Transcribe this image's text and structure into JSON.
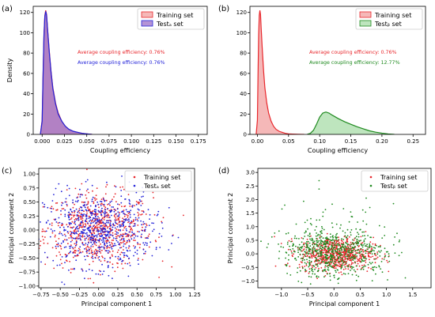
{
  "chart_data": [
    {
      "panel": "(a)",
      "type": "area",
      "xlabel": "Coupling efficiency",
      "ylabel": "Density",
      "xlim": [
        -0.01,
        0.185
      ],
      "ylim": [
        0,
        126
      ],
      "xticks": [
        "0.000",
        "0.025",
        "0.050",
        "0.075",
        "0.100",
        "0.125",
        "0.150",
        "0.175"
      ],
      "yticks": [
        "0",
        "20",
        "40",
        "60",
        "80",
        "100",
        "120"
      ],
      "xtick_values": [
        0,
        0.025,
        0.05,
        0.075,
        0.1,
        0.125,
        0.15,
        0.175
      ],
      "ytick_values": [
        0,
        20,
        40,
        60,
        80,
        100,
        120
      ],
      "legend_position": "top-right",
      "legend": [
        "Training set",
        "Testₐ set"
      ],
      "annotations": [
        {
          "text": "Average coupling efficiency: 0.76%",
          "color": "#e8262b"
        },
        {
          "text": "Average coupling efficiency: 0.76%",
          "color": "#2323d9"
        }
      ],
      "series": [
        {
          "name": "Training set",
          "color": "#e8262b",
          "fill": "#f2a0a0",
          "x": [
            -0.002,
            0.0,
            0.001,
            0.002,
            0.003,
            0.004,
            0.005,
            0.006,
            0.008,
            0.01,
            0.012,
            0.015,
            0.018,
            0.022,
            0.026,
            0.03,
            0.035,
            0.04,
            0.045,
            0.05,
            0.056
          ],
          "y": [
            0,
            14,
            58,
            98,
            117,
            122,
            118,
            105,
            82,
            62,
            46,
            31,
            21,
            13,
            8,
            5,
            3,
            2,
            1,
            0.5,
            0
          ]
        },
        {
          "name": "Testₐ set",
          "color": "#2323d9",
          "fill": "#9b6fc8",
          "x": [
            -0.002,
            0.0,
            0.001,
            0.002,
            0.003,
            0.004,
            0.005,
            0.006,
            0.008,
            0.01,
            0.012,
            0.015,
            0.018,
            0.022,
            0.026,
            0.03,
            0.035,
            0.04,
            0.045,
            0.05,
            0.056
          ],
          "y": [
            0,
            13,
            56,
            96,
            116,
            121,
            117,
            104,
            81,
            61,
            45,
            30,
            20,
            13,
            8,
            5,
            3,
            2,
            1,
            0.5,
            0
          ]
        }
      ]
    },
    {
      "panel": "(b)",
      "type": "area",
      "xlabel": "Coupling efficiency",
      "ylabel": "",
      "xlim": [
        -0.012,
        0.27
      ],
      "ylim": [
        0,
        126
      ],
      "xticks": [
        "0.00",
        "0.05",
        "0.10",
        "0.15",
        "0.20",
        "0.25"
      ],
      "yticks": [
        "0",
        "20",
        "40",
        "60",
        "80",
        "100",
        "120"
      ],
      "xtick_values": [
        0,
        0.05,
        0.1,
        0.15,
        0.2,
        0.25
      ],
      "ytick_values": [
        0,
        20,
        40,
        60,
        80,
        100,
        120
      ],
      "legend_position": "top-right",
      "legend": [
        "Training set",
        "Testᵦ set"
      ],
      "annotations": [
        {
          "text": "Average coupling efficiency: 0.76%",
          "color": "#e8262b"
        },
        {
          "text": "Average coupling efficiency: 12.77%",
          "color": "#1f8a1f"
        }
      ],
      "series": [
        {
          "name": "Training set",
          "color": "#e8262b",
          "fill": "#f2a0a0",
          "x": [
            -0.002,
            0.0,
            0.001,
            0.002,
            0.003,
            0.004,
            0.005,
            0.006,
            0.008,
            0.01,
            0.012,
            0.015,
            0.018,
            0.022,
            0.026,
            0.03,
            0.035,
            0.04,
            0.045,
            0.05,
            0.056,
            0.065,
            0.075
          ],
          "y": [
            0,
            14,
            58,
            98,
            117,
            122,
            118,
            105,
            82,
            62,
            46,
            31,
            21,
            13,
            8,
            5,
            3,
            2,
            1,
            0.5,
            0.3,
            0.1,
            0
          ]
        },
        {
          "name": "Testᵦ set",
          "color": "#1f8a1f",
          "fill": "#a8dca8",
          "x": [
            0.08,
            0.085,
            0.09,
            0.095,
            0.1,
            0.105,
            0.11,
            0.115,
            0.12,
            0.13,
            0.14,
            0.15,
            0.16,
            0.17,
            0.18,
            0.19,
            0.2,
            0.21,
            0.22
          ],
          "y": [
            0,
            1,
            4,
            10,
            17,
            21,
            22,
            21,
            19,
            15.5,
            12.5,
            10,
            7.5,
            5.5,
            3.5,
            2.2,
            1.2,
            0.4,
            0
          ]
        }
      ]
    },
    {
      "panel": "(c)",
      "type": "scatter",
      "xlabel": "Principal component 1",
      "ylabel": "Principal component 2",
      "xlim": [
        -0.78,
        1.25
      ],
      "ylim": [
        -1.03,
        1.1
      ],
      "xticks": [
        "−0.75",
        "−0.50",
        "−0.25",
        "0.00",
        "0.25",
        "0.50",
        "0.75",
        "1.00",
        "1.25"
      ],
      "yticks": [
        "−1.00",
        "−0.75",
        "−0.50",
        "−0.25",
        "0.00",
        "0.25",
        "0.50",
        "0.75",
        "1.00"
      ],
      "xtick_values": [
        -0.75,
        -0.5,
        -0.25,
        0,
        0.25,
        0.5,
        0.75,
        1.0,
        1.25
      ],
      "ytick_values": [
        -1.0,
        -0.75,
        -0.5,
        -0.25,
        0,
        0.25,
        0.5,
        0.75,
        1.0
      ],
      "legend_position": "top-right",
      "legend": [
        "Training set",
        "Testₐ set"
      ],
      "series": [
        {
          "name": "Training set",
          "color": "#e8262b",
          "center": [
            0.0,
            0.0
          ],
          "spread": [
            0.35,
            0.33
          ],
          "count": 700
        },
        {
          "name": "Testₐ set",
          "color": "#2323d9",
          "center": [
            0.0,
            0.0
          ],
          "spread": [
            0.35,
            0.33
          ],
          "count": 700
        }
      ]
    },
    {
      "panel": "(d)",
      "type": "scatter",
      "xlabel": "Principal component 1",
      "ylabel": "Principal component 2",
      "xlim": [
        -1.45,
        1.85
      ],
      "ylim": [
        -1.25,
        3.15
      ],
      "xticks": [
        "−1.0",
        "−0.5",
        "0.0",
        "0.5",
        "1.0",
        "1.5"
      ],
      "yticks": [
        "−1.0",
        "−0.5",
        "0.0",
        "0.5",
        "1.0",
        "1.5",
        "2.0",
        "2.5",
        "3.0"
      ],
      "xtick_values": [
        -1.0,
        -0.5,
        0,
        0.5,
        1.0,
        1.5
      ],
      "ytick_values": [
        -1.0,
        -0.5,
        0,
        0.5,
        1.0,
        1.5,
        2.0,
        2.5,
        3.0
      ],
      "legend_position": "top-right",
      "legend": [
        "Training set",
        "Testᵦ set"
      ],
      "series": [
        {
          "name": "Training set",
          "color": "#e8262b",
          "center": [
            0.05,
            0.0
          ],
          "spread": [
            0.35,
            0.3
          ],
          "count": 700
        },
        {
          "name": "Testᵦ set",
          "color": "#1f8a1f",
          "center": [
            0.0,
            0.05
          ],
          "spread": [
            0.5,
            0.45
          ],
          "count": 700
        }
      ]
    }
  ]
}
